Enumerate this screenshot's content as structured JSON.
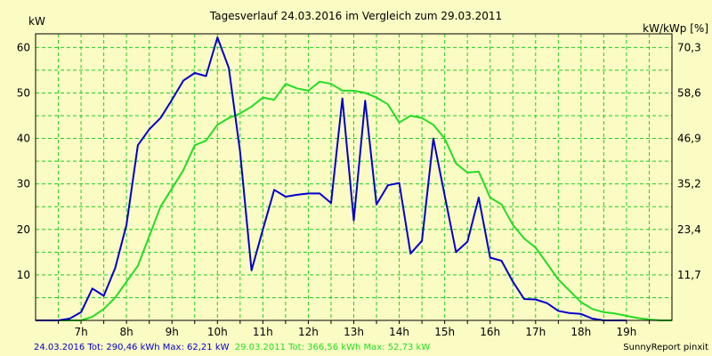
{
  "chart_data": {
    "type": "line",
    "title": "Tagesverlauf 24.03.2016 im Vergleich zum 29.03.2011",
    "ylabel_left": "kW",
    "ylabel_right": "kW/kWp [%]",
    "x_ticks": [
      "7h",
      "8h",
      "9h",
      "10h",
      "11h",
      "12h",
      "13h",
      "14h",
      "15h",
      "16h",
      "17h",
      "18h",
      "19h"
    ],
    "y_ticks_left": [
      "10",
      "20",
      "30",
      "40",
      "50",
      "60"
    ],
    "y_ticks_right": [
      "11,7",
      "23,4",
      "35,2",
      "46,9",
      "58,6",
      "70,3"
    ],
    "xlim": [
      6.0,
      20.0
    ],
    "ylim": [
      0,
      63
    ],
    "grid": true,
    "series": [
      {
        "color": "#0000cc",
        "x": [
          6.0,
          6.25,
          6.5,
          6.75,
          7.0,
          7.25,
          7.5,
          7.75,
          8.0,
          8.25,
          8.5,
          8.75,
          9.0,
          9.25,
          9.5,
          9.75,
          10.0,
          10.25,
          10.5,
          10.75,
          11.0,
          11.25,
          11.5,
          11.75,
          12.0,
          12.25,
          12.5,
          12.75,
          13.0,
          13.25,
          13.5,
          13.75,
          14.0,
          14.25,
          14.5,
          14.75,
          15.0,
          15.25,
          15.5,
          15.75,
          16.0,
          16.25,
          16.5,
          16.75,
          17.0,
          17.25,
          17.5,
          17.75,
          18.0,
          18.25,
          18.5,
          18.75,
          19.0
        ],
        "values": [
          0,
          0,
          0,
          0.4,
          1.8,
          7.0,
          5.4,
          11.5,
          21.0,
          38.5,
          42.0,
          44.5,
          48.5,
          52.7,
          54.4,
          53.7,
          62.2,
          55.5,
          37.0,
          11.0,
          20.0,
          28.7,
          27.2,
          27.6,
          27.9,
          27.9,
          25.8,
          48.8,
          22.0,
          48.3,
          25.5,
          29.7,
          30.2,
          14.7,
          17.5,
          40.0,
          27.5,
          15.0,
          17.3,
          27.0,
          13.8,
          13.1,
          8.5,
          4.7,
          4.6,
          3.8,
          2.1,
          1.6,
          1.4,
          0.4,
          0,
          0,
          0
        ]
      },
      {
        "color": "#22dd22",
        "x": [
          6.0,
          6.5,
          7.0,
          7.25,
          7.5,
          7.75,
          8.0,
          8.25,
          8.5,
          8.75,
          9.0,
          9.25,
          9.5,
          9.75,
          10.0,
          10.25,
          10.5,
          10.75,
          11.0,
          11.25,
          11.5,
          11.75,
          12.0,
          12.25,
          12.5,
          12.75,
          13.0,
          13.25,
          13.5,
          13.75,
          14.0,
          14.25,
          14.5,
          14.75,
          15.0,
          15.25,
          15.5,
          15.75,
          16.0,
          16.25,
          16.5,
          16.75,
          17.0,
          17.25,
          17.5,
          17.75,
          18.0,
          18.25,
          18.5,
          18.75,
          19.0,
          19.25,
          19.5,
          19.75,
          20.0
        ],
        "values": [
          0,
          0,
          0,
          0.8,
          2.5,
          5.0,
          8.5,
          12.0,
          18.5,
          25.0,
          29.0,
          33.0,
          38.5,
          39.5,
          43.0,
          44.5,
          45.5,
          47.0,
          49.0,
          48.5,
          52.0,
          51.0,
          50.5,
          52.5,
          52.0,
          50.5,
          50.5,
          50.0,
          49.0,
          47.5,
          43.5,
          45.0,
          44.5,
          43.0,
          40.0,
          34.5,
          32.5,
          32.7,
          27.0,
          25.5,
          21.0,
          18.0,
          16.0,
          12.5,
          9.0,
          6.5,
          4.0,
          2.5,
          1.8,
          1.5,
          1.0,
          0.5,
          0.2,
          0,
          0
        ]
      }
    ],
    "footer_left_blue": "24.03.2016 Tot: 290,46 kWh Max: 62,21 kW",
    "footer_left_green": "29.03.2011 Tot: 366,56 kWh Max: 52,73 kW",
    "footer_right": "SunnyReport pinxit"
  }
}
